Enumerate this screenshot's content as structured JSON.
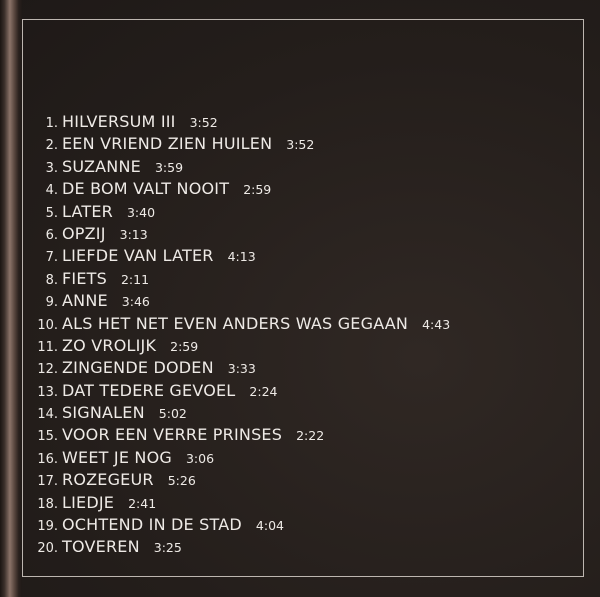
{
  "tracks": [
    {
      "num": "1.",
      "title": "HILVERSUM III",
      "time": "3:52"
    },
    {
      "num": "2.",
      "title": "EEN VRIEND ZIEN HUILEN",
      "time": "3:52"
    },
    {
      "num": "3.",
      "title": "SUZANNE",
      "time": "3:59"
    },
    {
      "num": "4.",
      "title": "DE BOM VALT NOOIT",
      "time": "2:59"
    },
    {
      "num": "5.",
      "title": "LATER",
      "time": "3:40"
    },
    {
      "num": "6.",
      "title": "OPZIJ",
      "time": "3:13"
    },
    {
      "num": "7.",
      "title": "LIEFDE VAN LATER",
      "time": "4:13"
    },
    {
      "num": "8.",
      "title": "FIETS",
      "time": "2:11"
    },
    {
      "num": "9.",
      "title": "ANNE",
      "time": "3:46"
    },
    {
      "num": "10.",
      "title": "ALS HET NET EVEN ANDERS WAS GEGAAN",
      "time": "4:43"
    },
    {
      "num": "11.",
      "title": "ZO VROLIJK",
      "time": "2:59"
    },
    {
      "num": "12.",
      "title": "ZINGENDE DODEN",
      "time": "3:33"
    },
    {
      "num": "13.",
      "title": "DAT TEDERE GEVOEL",
      "time": "2:24"
    },
    {
      "num": "14.",
      "title": "SIGNALEN",
      "time": "5:02"
    },
    {
      "num": "15.",
      "title": "VOOR EEN VERRE PRINSES",
      "time": "2:22"
    },
    {
      "num": "16.",
      "title": "WEET JE NOG",
      "time": "3:06"
    },
    {
      "num": "17.",
      "title": "ROZEGEUR",
      "time": "5:26"
    },
    {
      "num": "18.",
      "title": "LIEDJE",
      "time": "2:41"
    },
    {
      "num": "19.",
      "title": "OCHTEND IN DE STAD",
      "time": "4:04"
    },
    {
      "num": "20.",
      "title": "TOVEREN",
      "time": "3:25"
    }
  ],
  "colors": {
    "background": "#241e1b",
    "text": "#eeeae6",
    "frame": "#bdb6b0"
  }
}
